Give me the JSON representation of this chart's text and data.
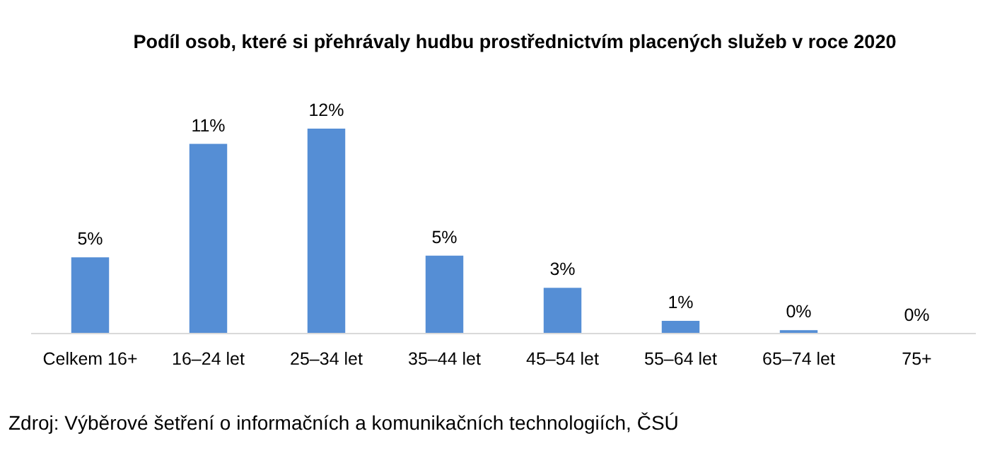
{
  "chart_data": {
    "type": "bar",
    "title": "Podíl osob, které si přehrávaly hudbu prostřednictvím placených služeb v roce 2020",
    "categories": [
      "Celkem 16+",
      "16–24 let",
      "25–34 let",
      "35–44 let",
      "45–54 let",
      "55–64 let",
      "65–74 let",
      "75+"
    ],
    "values": [
      4.5,
      11.2,
      12.1,
      4.6,
      2.7,
      0.75,
      0.2,
      0
    ],
    "value_labels": [
      "5%",
      "11%",
      "12%",
      "5%",
      "3%",
      "1%",
      "0%",
      "0%"
    ],
    "color": "#558ed5",
    "tick_labels": "x",
    "annotations": [
      "Zdroj: Výběrové šetření o informačních a komunikačních technologiích, ČSÚ"
    ]
  }
}
